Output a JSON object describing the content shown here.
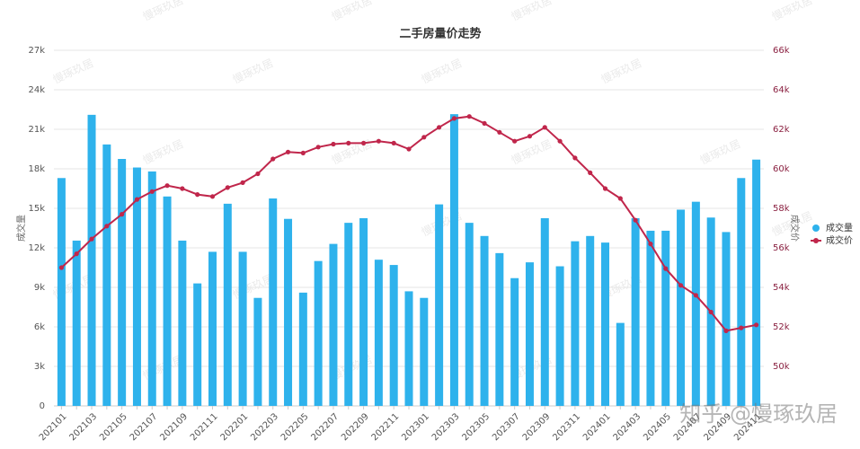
{
  "chart_data": {
    "type": "bar-line",
    "title": "二手房量价走势",
    "y_label": "成交量",
    "y2_label": "成交价",
    "categories": [
      "202101",
      null,
      "202103",
      null,
      "202105",
      null,
      "202107",
      null,
      "202109",
      null,
      "202111",
      null,
      "202201",
      null,
      "202203",
      null,
      "202205",
      null,
      "202207",
      null,
      "202209",
      null,
      "202211",
      null,
      "202301",
      null,
      "202303",
      null,
      "202305",
      null,
      "202307",
      null,
      "202309",
      null,
      "202311",
      null,
      "202401",
      null,
      "202403",
      null,
      "202405",
      null,
      "202407",
      null,
      "202409",
      null,
      "202411"
    ],
    "series": [
      {
        "name": "成交量",
        "type": "bar",
        "axis": "y",
        "color": "#2eb2ec",
        "values": [
          17300,
          12550,
          22100,
          19850,
          18750,
          18100,
          17800,
          15900,
          12550,
          9300,
          11700,
          15350,
          11700,
          8200,
          15750,
          14200,
          8600,
          11000,
          12300,
          13900,
          14250,
          11100,
          10700,
          8700,
          8200,
          15300,
          22150,
          13900,
          12900,
          11600,
          9700,
          10900,
          14250,
          10600,
          12500,
          12900,
          12400,
          6300,
          14250,
          13300,
          13300,
          14900,
          15500,
          14300,
          13200,
          17300,
          18700
        ]
      },
      {
        "name": "成交价",
        "type": "line",
        "axis": "y2",
        "color": "#c0264b",
        "values": [
          55000,
          55700,
          56450,
          57100,
          57700,
          58450,
          58850,
          59150,
          59000,
          58700,
          58600,
          59050,
          59300,
          59750,
          60500,
          60850,
          60800,
          61100,
          61250,
          61300,
          61300,
          61400,
          61300,
          61000,
          61600,
          62100,
          62550,
          62650,
          62300,
          61850,
          61400,
          61650,
          62100,
          61400,
          60550,
          59800,
          59000,
          58500,
          57400,
          56200,
          54950,
          54100,
          53600,
          52750,
          51800,
          51950,
          52100
        ]
      }
    ],
    "ylim": [
      0,
      27000
    ],
    "yticks": [
      {
        "value": 0,
        "label": "0"
      },
      {
        "value": 3000,
        "label": "3k"
      },
      {
        "value": 6000,
        "label": "6k"
      },
      {
        "value": 9000,
        "label": "9k"
      },
      {
        "value": 12000,
        "label": "12k"
      },
      {
        "value": 15000,
        "label": "15k"
      },
      {
        "value": 18000,
        "label": "18k"
      },
      {
        "value": 21000,
        "label": "21k"
      },
      {
        "value": 24000,
        "label": "24k"
      },
      {
        "value": 27000,
        "label": "27k"
      }
    ],
    "y2lim": [
      48000,
      66000
    ],
    "y2ticks": [
      {
        "value": 50000,
        "label": "50k"
      },
      {
        "value": 52000,
        "label": "52k"
      },
      {
        "value": 54000,
        "label": "54k"
      },
      {
        "value": 56000,
        "label": "56k"
      },
      {
        "value": 58000,
        "label": "58k"
      },
      {
        "value": 60000,
        "label": "60k"
      },
      {
        "value": 62000,
        "label": "62k"
      },
      {
        "value": 64000,
        "label": "64k"
      },
      {
        "value": 66000,
        "label": "66k"
      }
    ],
    "grid": true,
    "legend": "right",
    "watermark": "慢琢玖居",
    "credit": "知乎 @慢琢玖居"
  }
}
